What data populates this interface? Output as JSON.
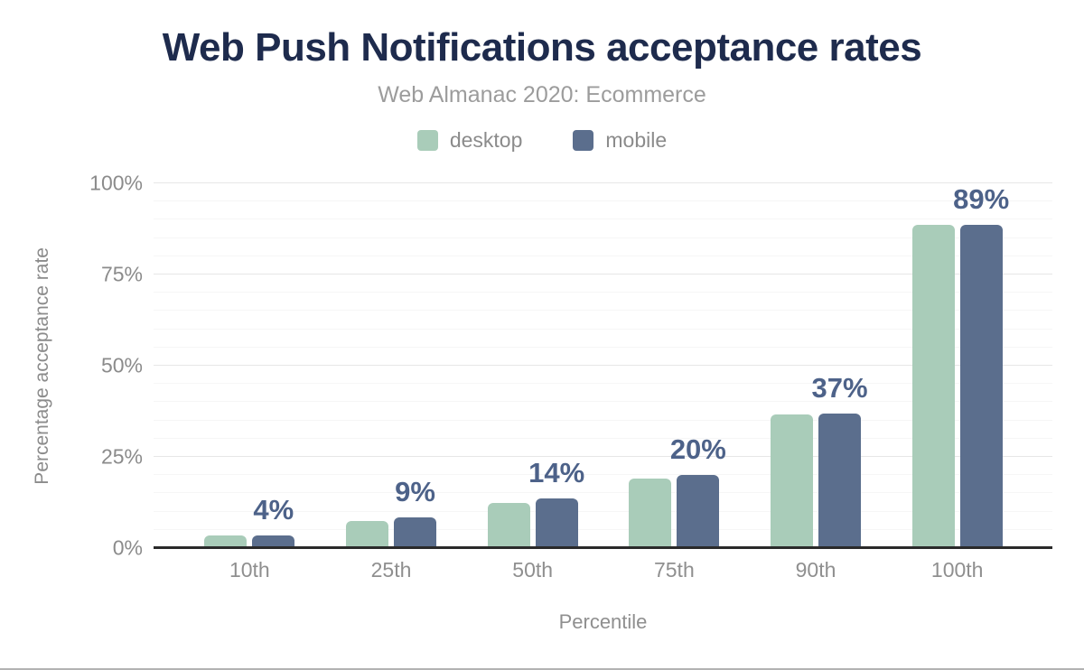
{
  "page": {
    "background": "#ffffff",
    "bottom_border_color": "#b3b3b3"
  },
  "chart_data": {
    "type": "bar",
    "title": "Web Push Notifications acceptance rates",
    "subtitle": "Web Almanac 2020: Ecommerce",
    "categories": [
      "10th",
      "25th",
      "50th",
      "75th",
      "90th",
      "100th"
    ],
    "series": [
      {
        "name": "desktop",
        "color": "#a9ccb9",
        "values": [
          3.4,
          7.5,
          12.5,
          19.0,
          36.6,
          88.6
        ]
      },
      {
        "name": "mobile",
        "color": "#5b6e8d",
        "values": [
          3.5,
          8.5,
          13.5,
          20.0,
          36.8,
          88.6
        ]
      }
    ],
    "bar_labels": [
      "4%",
      "9%",
      "14%",
      "20%",
      "37%",
      "89%"
    ],
    "bar_label_color": "#4d6289",
    "xlabel": "Percentile",
    "ylabel": "Percentage acceptance rate",
    "ylim": [
      0,
      100
    ],
    "yticks": [
      {
        "value": 0,
        "label": "0%"
      },
      {
        "value": 25,
        "label": "25%"
      },
      {
        "value": 50,
        "label": "50%"
      },
      {
        "value": 75,
        "label": "75%"
      },
      {
        "value": 100,
        "label": "100%"
      }
    ],
    "grid": {
      "minor_step": 5,
      "major_step": 25,
      "minor_color": "#f6f6f6",
      "major_color": "#e7e7e7"
    },
    "axis_line_color": "#2a2a2a",
    "legend_position": "top",
    "title_color": "#1e2b4d",
    "subtitle_color": "#9c9c9c",
    "tick_color": "#8b8b8b"
  }
}
